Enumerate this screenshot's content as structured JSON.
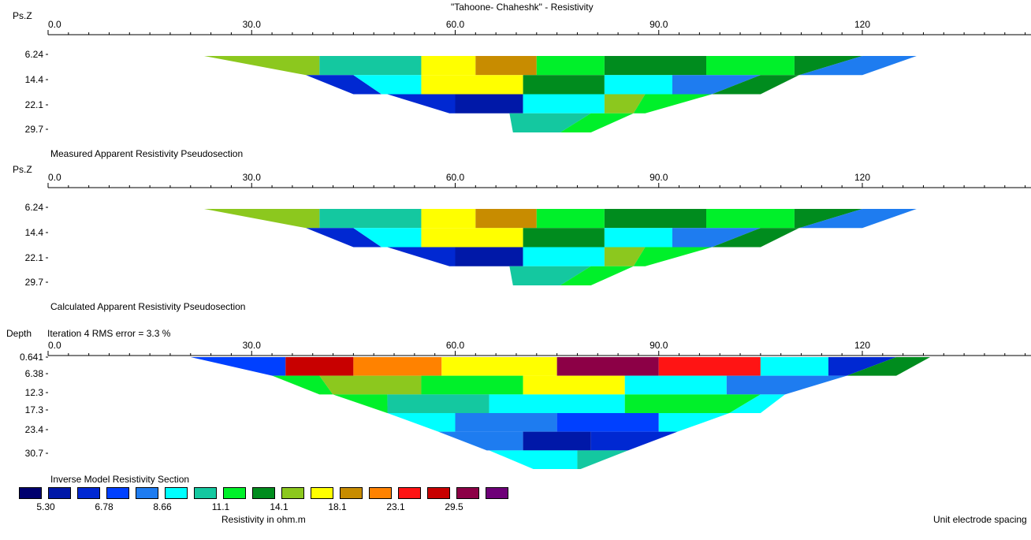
{
  "title": "\"Tahoone- Chaheshk\" - Resistivity",
  "panels": [
    {
      "depth_label": "Ps.Z",
      "caption": "Measured Apparent Resistivity Pseudosection",
      "x_ticks": [
        "0.0",
        "30.0",
        "60.0",
        "90.0",
        "120"
      ],
      "y_ticks": [
        "6.24",
        "14.4",
        "22.1",
        "29.7"
      ]
    },
    {
      "depth_label": "Ps.Z",
      "caption": "Calculated Apparent Resistivity Pseudosection",
      "x_ticks": [
        "0.0",
        "30.0",
        "60.0",
        "90.0",
        "120"
      ],
      "y_ticks": [
        "6.24",
        "14.4",
        "22.1",
        "29.7"
      ]
    },
    {
      "depth_label": "Depth",
      "iteration_text": "Iteration 4 RMS error = 3.3 %",
      "caption": "Inverse Model Resistivity Section",
      "x_ticks": [
        "0.0",
        "30.0",
        "60.0",
        "90.0",
        "120"
      ],
      "y_ticks": [
        "0.641",
        "6.38",
        "12.3",
        "17.3",
        "23.4",
        "30.7"
      ]
    }
  ],
  "legend": {
    "title": "Resistivity in ohm.m",
    "colors": [
      "#00006e",
      "#0018a8",
      "#0028d2",
      "#0040ff",
      "#1e7cf0",
      "#00ffff",
      "#14c8a0",
      "#00f02a",
      "#008c1e",
      "#8cc81e",
      "#ffff00",
      "#c88c00",
      "#ff8200",
      "#ff1414",
      "#c80000",
      "#8c0046",
      "#6e0078"
    ],
    "labels": [
      "5.30",
      "6.78",
      "8.66",
      "11.1",
      "14.1",
      "18.1",
      "23.1",
      "29.5"
    ]
  },
  "footer_note": "Unit electrode spacing",
  "chart_data": [
    {
      "type": "heatmap",
      "title": "Measured Apparent Resistivity Pseudosection",
      "xlabel": "",
      "ylabel": "Ps.Z",
      "xlim": [
        0,
        145
      ],
      "y_ticks": [
        6.24,
        14.4,
        22.1,
        29.7
      ],
      "bands": [
        {
          "depth": 6.24,
          "x": [
            23,
            40,
            55,
            63,
            72,
            82,
            97,
            110,
            120,
            128
          ],
          "color_index": [
            9,
            6,
            10,
            11,
            7,
            8,
            7,
            8,
            4,
            2
          ]
        },
        {
          "depth": 14.4,
          "x": [
            30,
            45,
            55,
            70,
            82,
            92,
            105,
            113
          ],
          "color_index": [
            2,
            5,
            10,
            8,
            5,
            4,
            8,
            9
          ]
        },
        {
          "depth": 22.1,
          "x": [
            50,
            60,
            70,
            82,
            88
          ],
          "color_index": [
            2,
            1,
            5,
            9,
            7
          ]
        },
        {
          "depth": 29.7,
          "x": [
            68,
            80
          ],
          "color_index": [
            6,
            7
          ]
        }
      ]
    },
    {
      "type": "heatmap",
      "title": "Calculated Apparent Resistivity Pseudosection",
      "xlabel": "",
      "ylabel": "Ps.Z",
      "xlim": [
        0,
        145
      ],
      "y_ticks": [
        6.24,
        14.4,
        22.1,
        29.7
      ],
      "bands": [
        {
          "depth": 6.24,
          "x": [
            23,
            40,
            55,
            63,
            72,
            82,
            97,
            110,
            120,
            128
          ],
          "color_index": [
            9,
            6,
            10,
            11,
            7,
            8,
            7,
            8,
            4,
            2
          ]
        },
        {
          "depth": 14.4,
          "x": [
            30,
            45,
            55,
            70,
            82,
            92,
            105,
            113
          ],
          "color_index": [
            2,
            5,
            10,
            8,
            5,
            4,
            8,
            9
          ]
        },
        {
          "depth": 22.1,
          "x": [
            50,
            60,
            70,
            82,
            88
          ],
          "color_index": [
            2,
            1,
            5,
            9,
            7
          ]
        },
        {
          "depth": 29.7,
          "x": [
            68,
            80
          ],
          "color_index": [
            6,
            7
          ]
        }
      ]
    },
    {
      "type": "heatmap",
      "title": "Inverse Model Resistivity Section",
      "xlabel": "",
      "ylabel": "Depth",
      "xlim": [
        0,
        145
      ],
      "y_ticks": [
        0.641,
        6.38,
        12.3,
        17.3,
        23.4,
        30.7
      ],
      "bands": [
        {
          "depth": 0.641,
          "x": [
            21,
            35,
            45,
            58,
            75,
            90,
            105,
            115,
            125,
            130
          ],
          "color_index": [
            3,
            14,
            12,
            10,
            15,
            13,
            5,
            2,
            8,
            2
          ]
        },
        {
          "depth": 6.38,
          "x": [
            25,
            40,
            55,
            70,
            85,
            100
          ],
          "color_index": [
            7,
            9,
            7,
            10,
            5,
            4
          ]
        },
        {
          "depth": 12.3,
          "x": [
            35,
            50,
            65,
            85,
            105
          ],
          "color_index": [
            7,
            6,
            5,
            7,
            5
          ]
        },
        {
          "depth": 17.3,
          "x": [
            45,
            60,
            75,
            90,
            105
          ],
          "color_index": [
            5,
            4,
            3,
            5,
            7
          ]
        },
        {
          "depth": 23.4,
          "x": [
            55,
            70,
            80,
            95
          ],
          "color_index": [
            4,
            1,
            2,
            5
          ]
        },
        {
          "depth": 30.7,
          "x": [
            65,
            78
          ],
          "color_index": [
            5,
            6
          ]
        }
      ]
    }
  ]
}
